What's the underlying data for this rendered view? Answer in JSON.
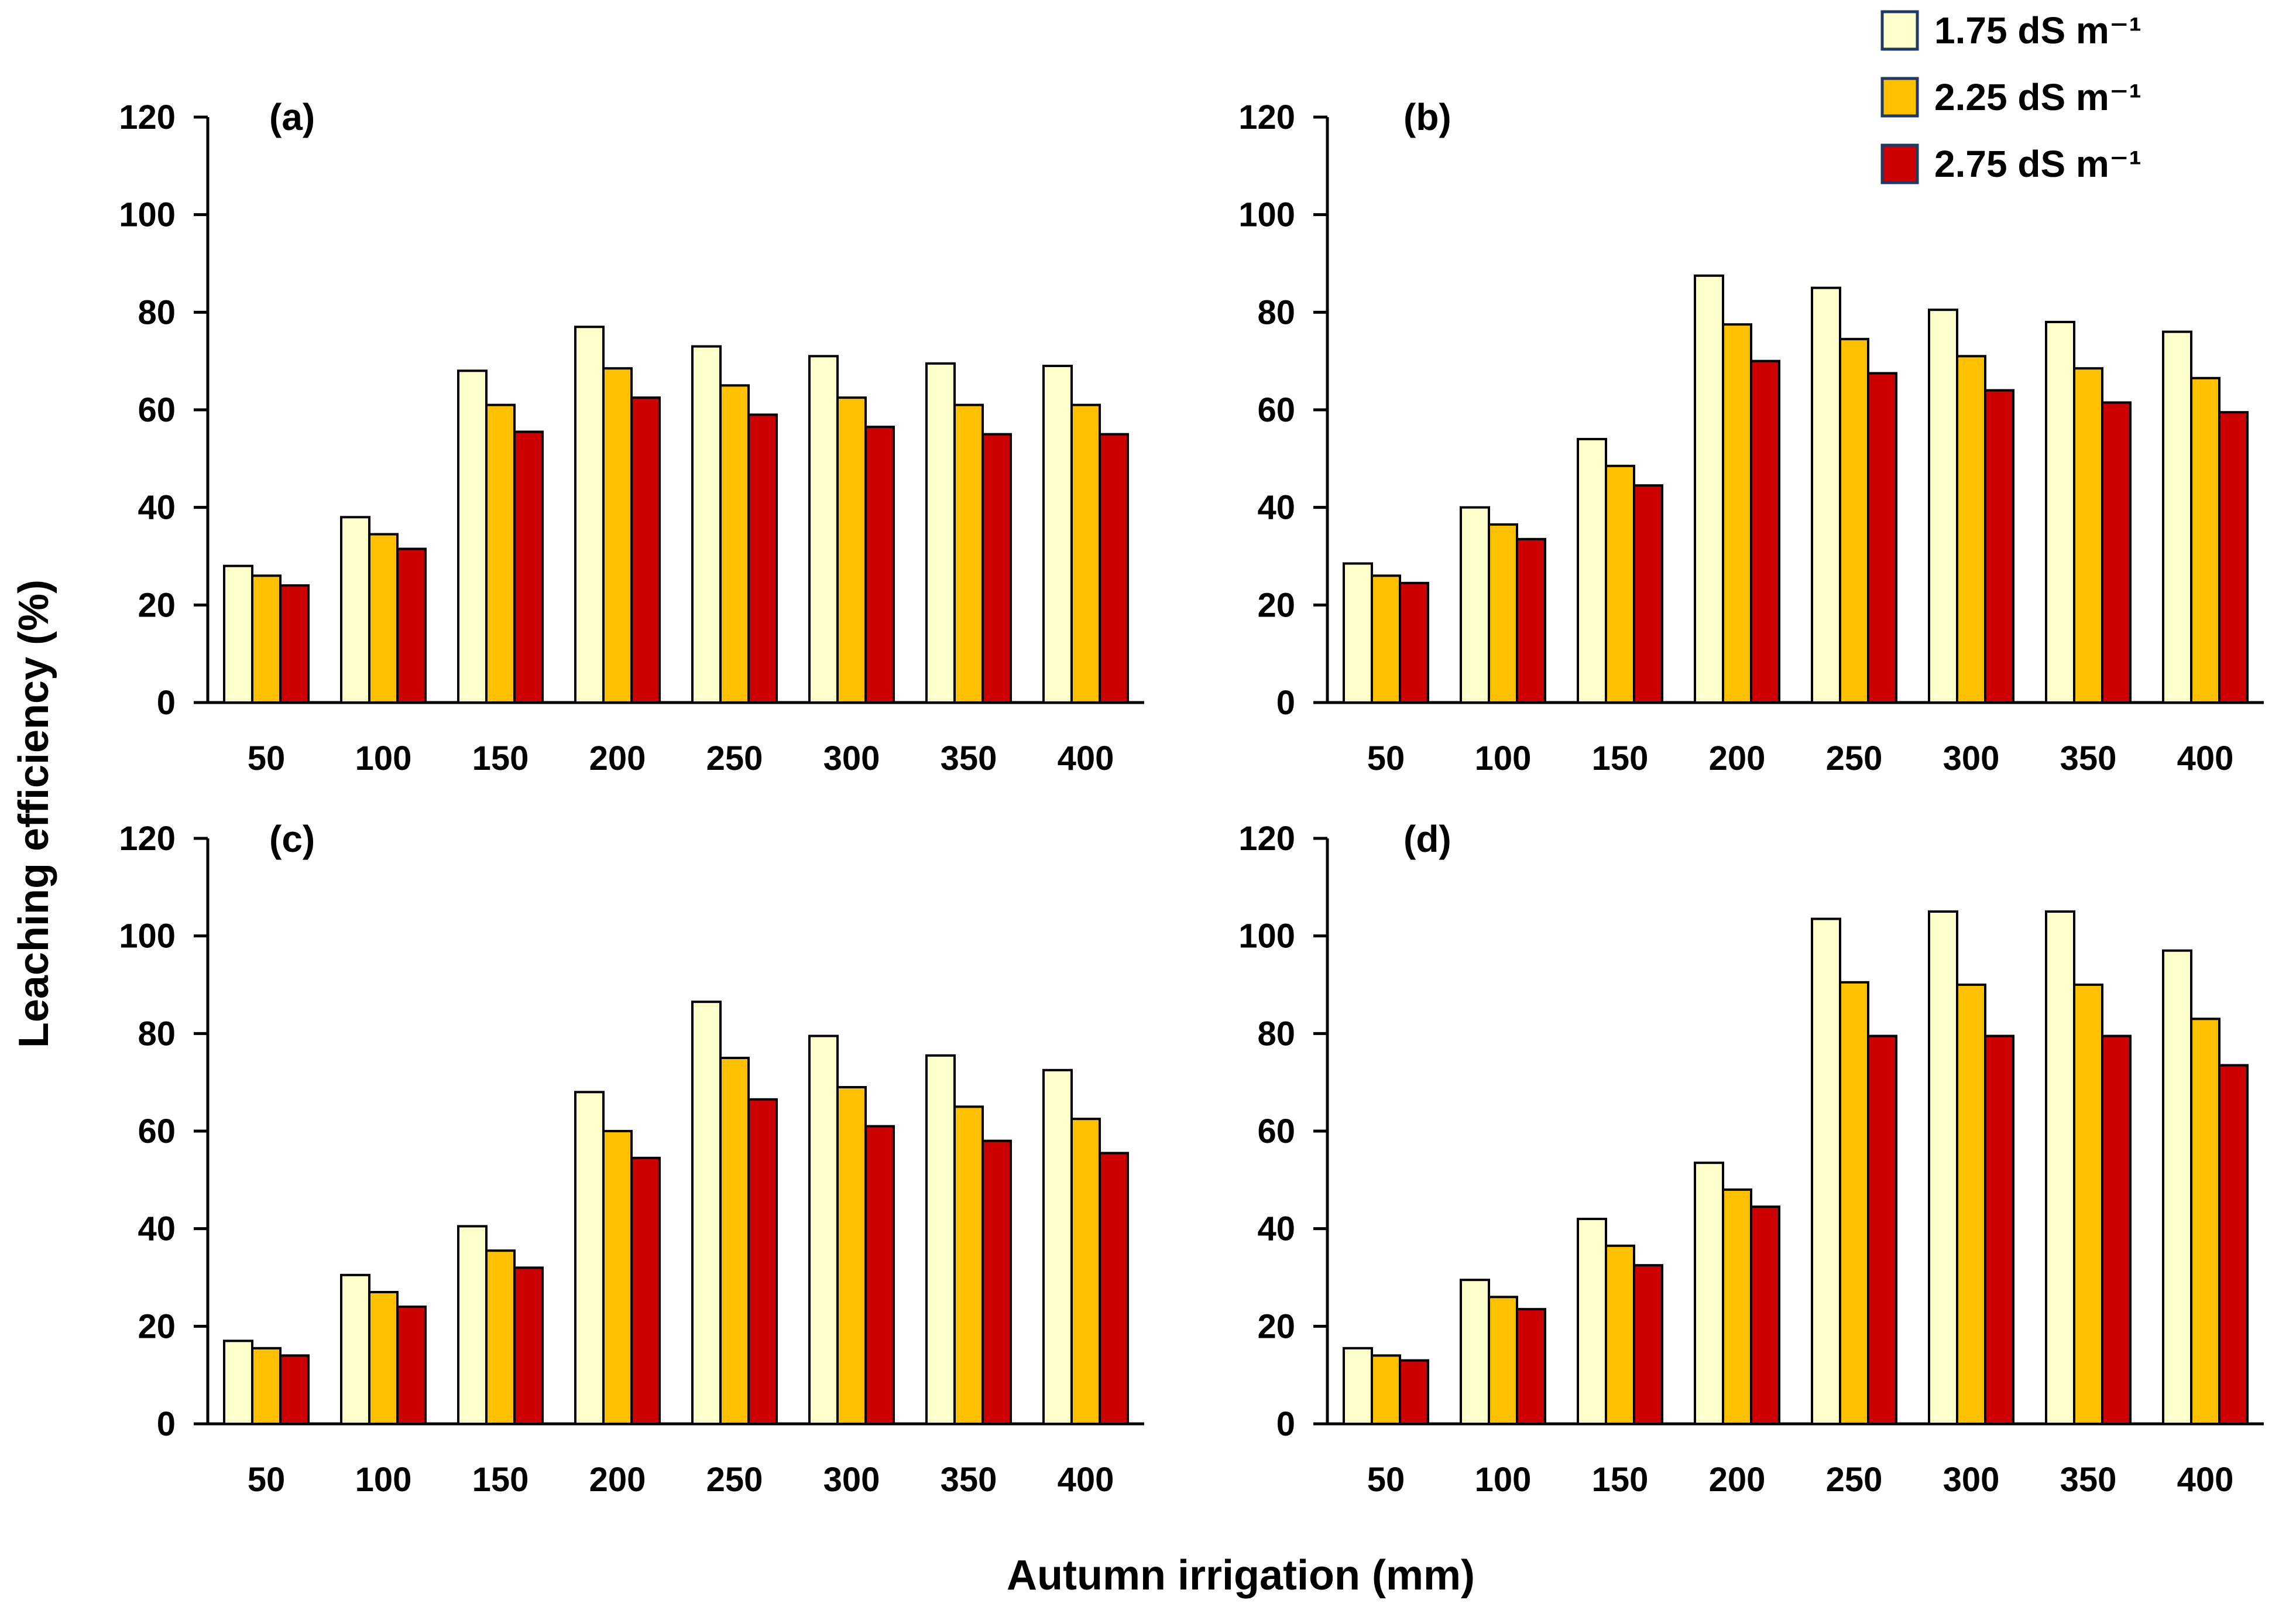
{
  "figure": {
    "ylabel": "Leaching efficiency (%)",
    "xlabel": "Autumn irrigation (mm)"
  },
  "colors": {
    "series_1": "#FFFFCC",
    "series_2": "#FFC000",
    "series_3": "#CC0000",
    "edge": "#000000"
  },
  "legend": [
    {
      "label": "1.75 dS m⁻¹",
      "color": "#FFFFCC"
    },
    {
      "label": "2.25 dS m⁻¹",
      "color": "#FFC000"
    },
    {
      "label": "2.75 dS m⁻¹",
      "color": "#CC0000"
    }
  ],
  "chart_data": [
    {
      "type": "bar",
      "title": "(a)",
      "categories": [
        "50",
        "100",
        "150",
        "200",
        "250",
        "300",
        "350",
        "400"
      ],
      "ylim": [
        0,
        120
      ],
      "yticks": [
        0,
        20,
        40,
        60,
        80,
        100,
        120
      ],
      "series": [
        {
          "name": "1.75 dS m⁻¹",
          "values": [
            28,
            38,
            68,
            77,
            73,
            71,
            69.5,
            69
          ]
        },
        {
          "name": "2.25 dS m⁻¹",
          "values": [
            26,
            34.5,
            61,
            68.5,
            65,
            62.5,
            61,
            61
          ]
        },
        {
          "name": "2.75 dS m⁻¹",
          "values": [
            24,
            31.5,
            55.5,
            62.5,
            59,
            56.5,
            55,
            55
          ]
        }
      ]
    },
    {
      "type": "bar",
      "title": "(b)",
      "categories": [
        "50",
        "100",
        "150",
        "200",
        "250",
        "300",
        "350",
        "400"
      ],
      "ylim": [
        0,
        120
      ],
      "yticks": [
        0,
        20,
        40,
        60,
        80,
        100,
        120
      ],
      "series": [
        {
          "name": "1.75 dS m⁻¹",
          "values": [
            28.5,
            40,
            54,
            87.5,
            85,
            80.5,
            78,
            76
          ]
        },
        {
          "name": "2.25 dS m⁻¹",
          "values": [
            26,
            36.5,
            48.5,
            77.5,
            74.5,
            71,
            68.5,
            66.5
          ]
        },
        {
          "name": "2.75 dS m⁻¹",
          "values": [
            24.5,
            33.5,
            44.5,
            70,
            67.5,
            64,
            61.5,
            59.5
          ]
        }
      ]
    },
    {
      "type": "bar",
      "title": "(c)",
      "categories": [
        "50",
        "100",
        "150",
        "200",
        "250",
        "300",
        "350",
        "400"
      ],
      "ylim": [
        0,
        120
      ],
      "yticks": [
        0,
        20,
        40,
        60,
        80,
        100,
        120
      ],
      "series": [
        {
          "name": "1.75 dS m⁻¹",
          "values": [
            17,
            30.5,
            40.5,
            68,
            86.5,
            79.5,
            75.5,
            72.5
          ]
        },
        {
          "name": "2.25 dS m⁻¹",
          "values": [
            15.5,
            27,
            35.5,
            60,
            75,
            69,
            65,
            62.5
          ]
        },
        {
          "name": "2.75 dS m⁻¹",
          "values": [
            14,
            24,
            32,
            54.5,
            66.5,
            61,
            58,
            55.5
          ]
        }
      ]
    },
    {
      "type": "bar",
      "title": "(d)",
      "categories": [
        "50",
        "100",
        "150",
        "200",
        "250",
        "300",
        "350",
        "400"
      ],
      "ylim": [
        0,
        120
      ],
      "yticks": [
        0,
        20,
        40,
        60,
        80,
        100,
        120
      ],
      "series": [
        {
          "name": "1.75 dS m⁻¹",
          "values": [
            15.5,
            29.5,
            42,
            53.5,
            103.5,
            105,
            105,
            97
          ]
        },
        {
          "name": "2.25 dS m⁻¹",
          "values": [
            14,
            26,
            36.5,
            48,
            90.5,
            90,
            90,
            83
          ]
        },
        {
          "name": "2.75 dS m⁻¹",
          "values": [
            13,
            23.5,
            32.5,
            44.5,
            79.5,
            79.5,
            79.5,
            73.5
          ]
        }
      ]
    }
  ]
}
